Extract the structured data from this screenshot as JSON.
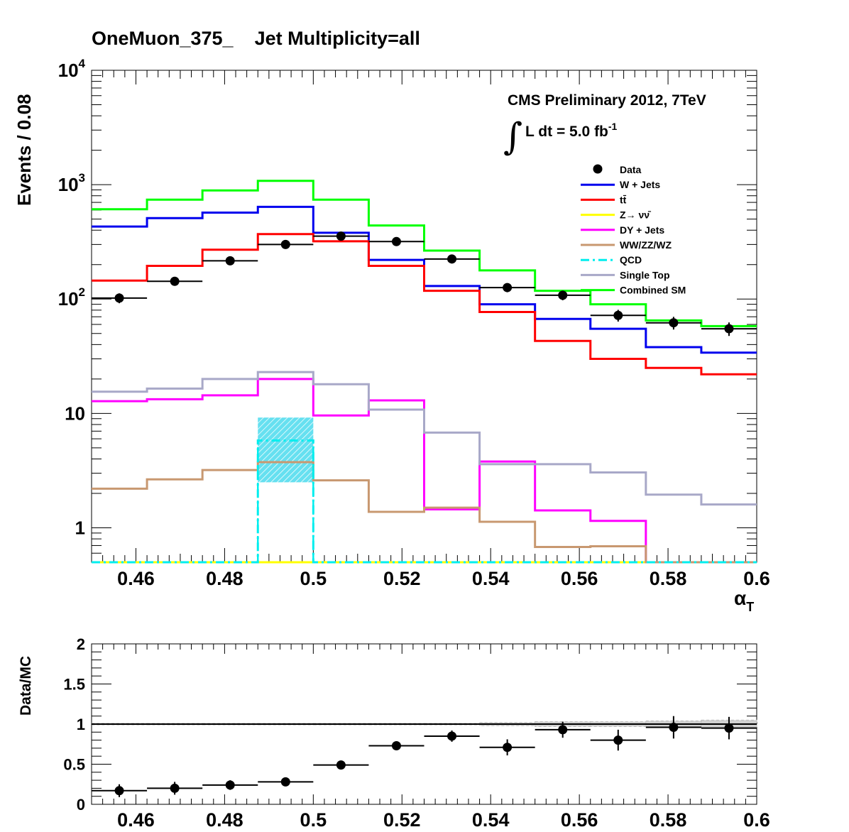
{
  "title": "OneMuon_375_    Jet Multiplicity=all",
  "header": {
    "line1": "CMS Preliminary 2012, 7TeV",
    "line2": "L dt = 5.0 fb",
    "line2_sup": "-1"
  },
  "chart_data": [
    {
      "type": "line",
      "subtype": "step-histogram",
      "yscale": "log",
      "xlabel": "α",
      "xlabel_sub": "T",
      "ylabel": "Events / 0.08",
      "xlim": [
        0.45,
        0.6
      ],
      "ylim": [
        0.5,
        10000
      ],
      "bin_edges": [
        0.45,
        0.4625,
        0.475,
        0.4875,
        0.5,
        0.5125,
        0.525,
        0.5375,
        0.55,
        0.5625,
        0.575,
        0.5875,
        0.6
      ],
      "x_ticks": [
        "0.46",
        "0.48",
        "0.5",
        "0.52",
        "0.54",
        "0.56",
        "0.58",
        "0.6"
      ],
      "x_tick_values": [
        0.46,
        0.48,
        0.5,
        0.52,
        0.54,
        0.56,
        0.58,
        0.6
      ],
      "y_ticks": [
        {
          "value": 1,
          "label": "1"
        },
        {
          "value": 10,
          "label": "10"
        },
        {
          "value": 100,
          "base": "10",
          "exp": "2"
        },
        {
          "value": 1000,
          "base": "10",
          "exp": "3"
        },
        {
          "value": 10000,
          "base": "10",
          "exp": "4"
        }
      ],
      "legend_position": "top-right",
      "series": [
        {
          "name": "W + Jets",
          "color": "#0000ee",
          "style": "solid",
          "values": [
            430,
            510,
            570,
            640,
            380,
            220,
            130,
            90,
            67,
            55,
            38,
            34
          ]
        },
        {
          "name": "tt̄",
          "color": "#ff0000",
          "style": "solid",
          "values": [
            145,
            195,
            270,
            370,
            320,
            195,
            118,
            77,
            43,
            30,
            25,
            22
          ]
        },
        {
          "name": "Z→ νν̄",
          "color": "#ffff00",
          "style": "solid",
          "values": [
            0.5,
            0.5,
            0.5,
            0.5,
            0.5,
            0.5,
            0.5,
            0.5,
            0.5,
            0.5,
            0.5,
            0.5
          ]
        },
        {
          "name": "DY + Jets",
          "color": "#ff00ff",
          "style": "solid",
          "values": [
            12.8,
            13.3,
            14.4,
            20,
            9.6,
            13,
            1.45,
            3.8,
            1.42,
            1.15,
            0.5,
            0.5
          ]
        },
        {
          "name": "WW/ZZ/WZ",
          "color": "#c89870",
          "style": "solid",
          "values": [
            2.2,
            2.65,
            3.2,
            3.75,
            2.6,
            1.38,
            1.5,
            1.13,
            0.68,
            0.69,
            0.5,
            0.5
          ]
        },
        {
          "name": "QCD",
          "color": "#00eeee",
          "style": "dashdot",
          "values": [
            0.5,
            0.5,
            0.5,
            5.8,
            0.5,
            0.5,
            0.5,
            0.5,
            0.5,
            0.5,
            0.5,
            0.5
          ]
        },
        {
          "name": "Single Top",
          "color": "#a8a8c8",
          "style": "solid",
          "values": [
            15.5,
            16.5,
            20,
            23,
            18,
            10.8,
            6.8,
            3.6,
            3.6,
            3.05,
            1.95,
            1.6
          ]
        },
        {
          "name": "Combined SM",
          "color": "#00ff00",
          "style": "solid",
          "values": [
            610,
            740,
            890,
            1080,
            740,
            440,
            265,
            178,
            118,
            90,
            65,
            58
          ]
        }
      ],
      "band": {
        "bin": 3,
        "low": 2.5,
        "high": 9.2,
        "color": "#55ddee"
      },
      "data": {
        "name": "Data",
        "values": [
          102,
          143,
          216,
          300,
          355,
          318,
          224,
          126,
          108,
          72,
          62,
          55
        ]
      }
    },
    {
      "type": "scatter",
      "ylabel": "Data/MC",
      "xlim": [
        0.45,
        0.6
      ],
      "ylim": [
        0,
        2
      ],
      "y_ticks": [
        "0",
        "0.5",
        "1",
        "1.5",
        "2"
      ],
      "y_tick_values": [
        0,
        0.5,
        1,
        1.5,
        2
      ],
      "x_ticks": [
        "0.46",
        "0.48",
        "0.5",
        "0.52",
        "0.54",
        "0.56",
        "0.58",
        "0.6"
      ],
      "x_tick_values": [
        0.46,
        0.48,
        0.5,
        0.52,
        0.54,
        0.56,
        0.58,
        0.6
      ],
      "reference_line": 1,
      "ratio": [
        0.17,
        0.2,
        0.24,
        0.28,
        0.49,
        0.73,
        0.85,
        0.71,
        0.93,
        0.8,
        0.96,
        0.95
      ],
      "ratio_err": [
        0.08,
        0.08,
        0.06,
        0.05,
        0.04,
        0.05,
        0.07,
        0.1,
        0.1,
        0.13,
        0.14,
        0.14
      ],
      "mc_band_halfwidth": [
        0.01,
        0.01,
        0.01,
        0.01,
        0.01,
        0.01,
        0.01,
        0.02,
        0.03,
        0.03,
        0.04,
        0.05
      ]
    }
  ]
}
